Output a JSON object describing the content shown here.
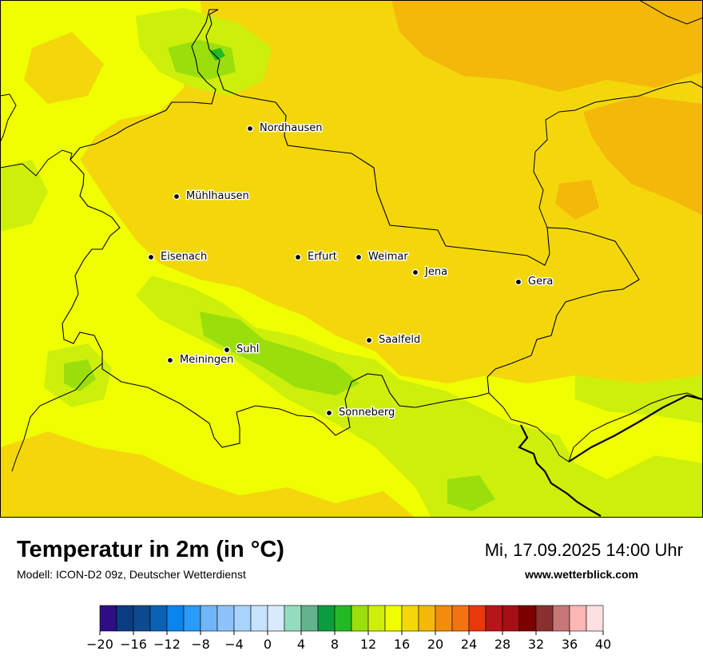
{
  "map": {
    "title": "Temperatur in 2m (in °C)",
    "model": "Modell: ICON-D2 09z, Deutscher Wetterdienst",
    "datetime": "Mi, 17.09.2025 14:00 Uhr",
    "website": "www.wetterblick.com"
  },
  "cities": [
    {
      "name": "Nordhausen"
    },
    {
      "name": "Mühlhausen"
    },
    {
      "name": "Eisenach"
    },
    {
      "name": "Erfurt"
    },
    {
      "name": "Weimar"
    },
    {
      "name": "Jena"
    },
    {
      "name": "Gera"
    },
    {
      "name": "Saalfeld"
    },
    {
      "name": "Suhl"
    },
    {
      "name": "Meiningen"
    },
    {
      "name": "Sonneberg"
    }
  ],
  "legend": {
    "ticks": [
      "−20",
      "−16",
      "−12",
      "−8",
      "−4",
      "0",
      "4",
      "8",
      "12",
      "16",
      "20",
      "24",
      "28",
      "32",
      "36",
      "40"
    ],
    "colors": [
      "#2f0d84",
      "#0a3d82",
      "#0d4a8f",
      "#0a62b5",
      "#0a85ee",
      "#2a9bf9",
      "#70b6f8",
      "#8cc3fa",
      "#a8d3fb",
      "#c6e2fc",
      "#d8ebfd",
      "#93dcbd",
      "#63b38d",
      "#0a9d3d",
      "#22ba23",
      "#9adf0c",
      "#cdef0c",
      "#f0ff00",
      "#f3d70b",
      "#f4b80b",
      "#f28d0b",
      "#f27410",
      "#e8390a",
      "#b6151a",
      "#a50f15",
      "#7d0000",
      "#8b3030",
      "#c87676",
      "#fbb7b4",
      "#fde0e1"
    ]
  }
}
